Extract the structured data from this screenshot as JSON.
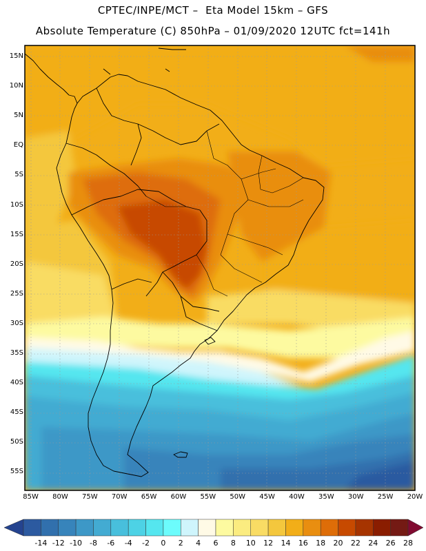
{
  "header": {
    "line1": "CPTEC/INPE/MCT –  Eta Model 15km – GFS",
    "line2": "Absolute Temperature (C) 850hPa – 01/09/2020 12UTC fct=141h"
  },
  "map": {
    "lat_range": [
      17,
      -58
    ],
    "lon_range": [
      -86,
      -20
    ],
    "lat_labels": [
      "15N",
      "10N",
      "5N",
      "EQ",
      "5S",
      "10S",
      "15S",
      "20S",
      "25S",
      "30S",
      "35S",
      "40S",
      "45S",
      "50S",
      "55S"
    ],
    "lat_values": [
      15,
      10,
      5,
      0,
      -5,
      -10,
      -15,
      -20,
      -25,
      -30,
      -35,
      -40,
      -45,
      -50,
      -55
    ],
    "lon_labels": [
      "85W",
      "80W",
      "75W",
      "70W",
      "65W",
      "60W",
      "55W",
      "50W",
      "45W",
      "40W",
      "35W",
      "30W",
      "25W",
      "20W"
    ],
    "lon_values": [
      -85,
      -80,
      -75,
      -70,
      -65,
      -60,
      -55,
      -50,
      -45,
      -40,
      -35,
      -30,
      -25,
      -20
    ]
  },
  "colorbar": {
    "labels": [
      "-14",
      "-12",
      "-10",
      "-8",
      "-6",
      "-4",
      "-2",
      "0",
      "2",
      "4",
      "6",
      "8",
      "10",
      "12",
      "14",
      "16",
      "18",
      "20",
      "22",
      "24",
      "26",
      "28"
    ],
    "colors": [
      "#24438f",
      "#2c5aa0",
      "#3170ad",
      "#3784bb",
      "#3d98c7",
      "#43abd2",
      "#48bfdc",
      "#4dd2e5",
      "#55e6ef",
      "#6cfcfc",
      "#cff5fc",
      "#fffae6",
      "#fdfaa0",
      "#fbec80",
      "#f9dc64",
      "#f4c73d",
      "#f2ae18",
      "#e98e10",
      "#de6d08",
      "#c74a00",
      "#a63400",
      "#8a1d00",
      "#741a14",
      "#800a30"
    ]
  }
}
